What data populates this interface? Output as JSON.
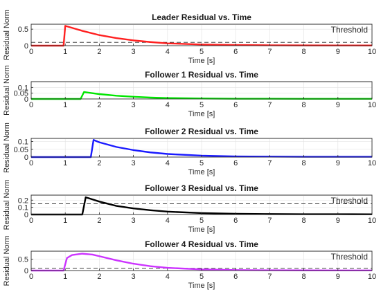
{
  "chart_data": [
    {
      "type": "line",
      "title": "Leader Residual vs. Time",
      "xlabel": "Time [s]",
      "ylabel": "Residual Norm",
      "xlim": [
        0,
        10
      ],
      "ylim": [
        0,
        0.65
      ],
      "xticks": [
        0,
        1,
        2,
        3,
        4,
        5,
        6,
        7,
        8,
        9,
        10
      ],
      "yticks": [
        0,
        0.5
      ],
      "ytick_labels": [
        "0",
        "0.5"
      ],
      "grid": true,
      "threshold": {
        "value": 0.1,
        "label": "Threshold"
      },
      "series": [
        {
          "color": "#ff2020",
          "x": [
            0,
            0.95,
            1.0,
            1.2,
            1.5,
            2,
            2.5,
            3,
            3.5,
            4,
            5,
            6,
            7,
            8,
            9,
            10
          ],
          "y": [
            0,
            0,
            0.6,
            0.54,
            0.45,
            0.32,
            0.23,
            0.16,
            0.11,
            0.07,
            0.035,
            0.02,
            0.012,
            0.008,
            0.006,
            0.005
          ]
        }
      ]
    },
    {
      "type": "line",
      "title": "Follower 1 Residual vs. Time",
      "xlabel": "Time [s]",
      "ylabel": "Residual Norm",
      "xlim": [
        0,
        10
      ],
      "ylim": [
        0,
        0.15
      ],
      "xticks": [
        0,
        1,
        2,
        3,
        4,
        5,
        6,
        7,
        8,
        9,
        10
      ],
      "yticks": [
        0,
        0.05,
        0.1
      ],
      "ytick_labels": [
        "0",
        "0.05",
        "0.1"
      ],
      "grid": true,
      "series": [
        {
          "color": "#00e600",
          "x": [
            0,
            1.45,
            1.55,
            1.8,
            2,
            2.5,
            3,
            3.5,
            4,
            5,
            6,
            7,
            8,
            9,
            10
          ],
          "y": [
            0,
            0,
            0.06,
            0.05,
            0.042,
            0.028,
            0.019,
            0.012,
            0.008,
            0.004,
            0.002,
            0.002,
            0.001,
            0.001,
            0.001
          ]
        }
      ]
    },
    {
      "type": "line",
      "title": "Follower 2 Residual vs. Time",
      "xlabel": "Time [s]",
      "ylabel": "Residual Norm",
      "xlim": [
        0,
        10
      ],
      "ylim": [
        0,
        0.12
      ],
      "xticks": [
        0,
        1,
        2,
        3,
        4,
        5,
        6,
        7,
        8,
        9,
        10
      ],
      "yticks": [
        0,
        0.05,
        0.1
      ],
      "ytick_labels": [
        "0",
        "0.05",
        "0.1"
      ],
      "grid": true,
      "series": [
        {
          "color": "#1a1aff",
          "x": [
            0,
            1.75,
            1.83,
            2,
            2.5,
            3,
            3.5,
            4,
            5,
            6,
            7,
            8,
            9,
            10
          ],
          "y": [
            0,
            0,
            0.11,
            0.095,
            0.065,
            0.045,
            0.03,
            0.02,
            0.009,
            0.004,
            0.003,
            0.002,
            0.002,
            0.002
          ]
        }
      ]
    },
    {
      "type": "line",
      "title": "Follower 3 Residual vs. Time",
      "xlabel": "Time [s]",
      "ylabel": "Residual Norm",
      "xlim": [
        0,
        10
      ],
      "ylim": [
        0,
        0.27
      ],
      "xticks": [
        0,
        1,
        2,
        3,
        4,
        5,
        6,
        7,
        8,
        9,
        10
      ],
      "yticks": [
        0,
        0.1,
        0.2
      ],
      "ytick_labels": [
        "0",
        "0.1",
        "0.2"
      ],
      "grid": true,
      "threshold": {
        "value": 0.15,
        "label": "Threshold"
      },
      "series": [
        {
          "color": "#000000",
          "x": [
            0,
            1.5,
            1.6,
            2,
            2.5,
            3,
            3.5,
            4,
            5,
            6,
            7,
            8,
            9,
            10
          ],
          "y": [
            0,
            0,
            0.24,
            0.18,
            0.12,
            0.085,
            0.06,
            0.04,
            0.02,
            0.01,
            0.006,
            0.004,
            0.004,
            0.003
          ]
        }
      ]
    },
    {
      "type": "line",
      "title": "Follower 4 Residual vs. Time",
      "xlabel": "Time [s]",
      "ylabel": "Residual Norm",
      "xlim": [
        0,
        10
      ],
      "ylim": [
        0,
        0.85
      ],
      "xticks": [
        0,
        1,
        2,
        3,
        4,
        5,
        6,
        7,
        8,
        9,
        10
      ],
      "yticks": [
        0,
        0.5
      ],
      "ytick_labels": [
        "0",
        "0.5"
      ],
      "grid": true,
      "threshold": {
        "value": 0.1,
        "label": "Threshold"
      },
      "series": [
        {
          "color": "#cc33ff",
          "x": [
            0,
            0.95,
            1.05,
            1.2,
            1.5,
            1.8,
            2,
            2.5,
            3,
            3.5,
            4,
            5,
            6,
            7,
            8,
            9,
            10
          ],
          "y": [
            0,
            0,
            0.55,
            0.68,
            0.74,
            0.7,
            0.63,
            0.45,
            0.3,
            0.19,
            0.12,
            0.05,
            0.02,
            0.012,
            0.008,
            0.006,
            0.005
          ]
        }
      ]
    }
  ]
}
